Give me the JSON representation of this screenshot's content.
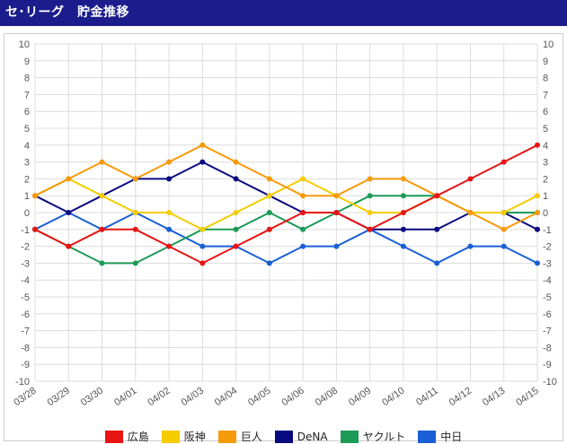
{
  "header": {
    "title": "セ･リーグ　貯金推移"
  },
  "chart_data": {
    "type": "line",
    "categories": [
      "03/28",
      "03/29",
      "03/30",
      "04/01",
      "04/02",
      "04/03",
      "04/04",
      "04/05",
      "04/06",
      "04/08",
      "04/09",
      "04/10",
      "04/11",
      "04/12",
      "04/13",
      "04/15"
    ],
    "ylim": [
      -10,
      10
    ],
    "yticks": [
      "10",
      "9",
      "8",
      "7",
      "6",
      "5",
      "4",
      "3",
      "2",
      "1",
      "0",
      "-1",
      "-2",
      "-3",
      "-4",
      "-5",
      "-6",
      "-7",
      "-8",
      "-9",
      "-10"
    ],
    "grid": true,
    "legend_position": "bottom",
    "series": [
      {
        "name": "中日",
        "color": "#1a5fd6",
        "values": [
          -1,
          0,
          -1,
          0,
          -1,
          -2,
          -2,
          -3,
          -2,
          -2,
          -1,
          -2,
          -3,
          -2,
          -2,
          -3
        ]
      },
      {
        "name": "ヤクルト",
        "color": "#1c9a57",
        "values": [
          -1,
          -2,
          -3,
          -3,
          -2,
          -1,
          -1,
          0,
          -1,
          0,
          1,
          1,
          1,
          0,
          0,
          0
        ]
      },
      {
        "name": "DeNA",
        "color": "#0a0a80",
        "values": [
          1,
          0,
          1,
          2,
          2,
          3,
          2,
          1,
          0,
          0,
          -1,
          -1,
          -1,
          0,
          0,
          -1
        ]
      },
      {
        "name": "阪神",
        "color": "#f5cc00",
        "values": [
          1,
          2,
          1,
          0,
          0,
          -1,
          0,
          1,
          2,
          1,
          0,
          0,
          1,
          0,
          0,
          1
        ]
      },
      {
        "name": "巨人",
        "color": "#f59a0a",
        "values": [
          1,
          2,
          3,
          2,
          3,
          4,
          3,
          2,
          1,
          1,
          2,
          2,
          1,
          0,
          -1,
          0
        ]
      },
      {
        "name": "広島",
        "color": "#e81414",
        "values": [
          -1,
          -2,
          -1,
          -1,
          -2,
          -3,
          -2,
          -1,
          0,
          0,
          -1,
          0,
          1,
          2,
          3,
          4
        ]
      }
    ],
    "legend": [
      {
        "name": "広島",
        "color": "#e81414"
      },
      {
        "name": "阪神",
        "color": "#f5cc00"
      },
      {
        "name": "巨人",
        "color": "#f59a0a"
      },
      {
        "name": "DeNA",
        "color": "#0a0a80"
      },
      {
        "name": "ヤクルト",
        "color": "#1c9a57"
      },
      {
        "name": "中日",
        "color": "#1a5fd6"
      }
    ]
  }
}
